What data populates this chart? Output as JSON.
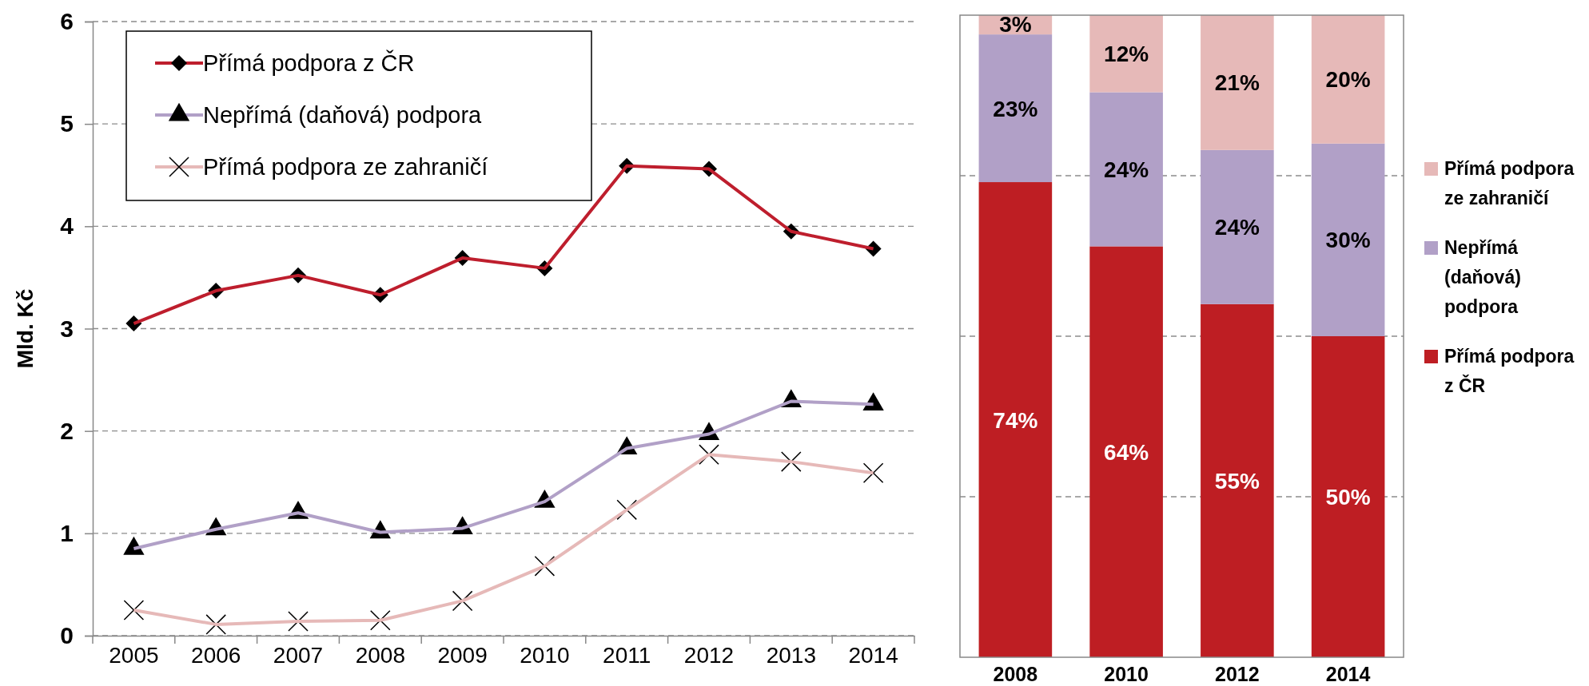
{
  "chart_data": [
    {
      "type": "line",
      "ylabel": "Mld. Kč",
      "categories": [
        "2005",
        "2006",
        "2007",
        "2008",
        "2009",
        "2010",
        "2011",
        "2012",
        "2013",
        "2014"
      ],
      "ylim": [
        0,
        6
      ],
      "yticks": [
        0,
        1,
        2,
        3,
        4,
        5,
        6
      ],
      "grid": "y",
      "legend": "top left",
      "line_style": "solid",
      "series": [
        {
          "name": "Přímá podpora z ČR",
          "color": "#be1e2d",
          "marker": "diamond",
          "values": [
            3.05,
            3.37,
            3.52,
            3.33,
            3.69,
            3.59,
            4.59,
            4.56,
            3.95,
            3.78
          ]
        },
        {
          "name": "Nepřímá (daňová) podpora",
          "color": "#b1a0c7",
          "marker": "triangle",
          "values": [
            0.85,
            1.04,
            1.2,
            1.01,
            1.05,
            1.31,
            1.83,
            1.97,
            2.29,
            2.26
          ]
        },
        {
          "name": "Přímá podpora ze zahraničí",
          "color": "#e6b9b8",
          "marker": "cross",
          "values": [
            0.25,
            0.11,
            0.14,
            0.15,
            0.34,
            0.68,
            1.23,
            1.77,
            1.7,
            1.59
          ]
        }
      ]
    },
    {
      "type": "bar",
      "stacked": true,
      "categories": [
        "2008",
        "2010",
        "2012",
        "2014"
      ],
      "ylim": [
        0,
        100
      ],
      "yticks": [
        {
          "value": 25,
          "label": null
        },
        {
          "value": 50,
          "label": null
        },
        {
          "value": 75,
          "label": null
        }
      ],
      "grid": "y",
      "tick_labels": "x",
      "legend": "right",
      "series": [
        {
          "name": "Přímá podpora z ČR",
          "color": "#be1e23",
          "values": [
            74,
            64,
            55,
            50
          ],
          "value_labels": [
            "74%",
            "64%",
            "55%",
            "50%"
          ]
        },
        {
          "name": "Nepřímá (daňová) podpora",
          "color": "#b1a0c7",
          "values": [
            23,
            24,
            24,
            30
          ],
          "value_labels": [
            "23%",
            "24%",
            "24%",
            "30%"
          ]
        },
        {
          "name": "Přímá podpora ze zahraničí",
          "color": "#e6b9b8",
          "values": [
            3,
            12,
            21,
            20
          ],
          "value_labels": [
            "3%",
            "12%",
            "21%",
            "20%"
          ]
        }
      ]
    }
  ]
}
